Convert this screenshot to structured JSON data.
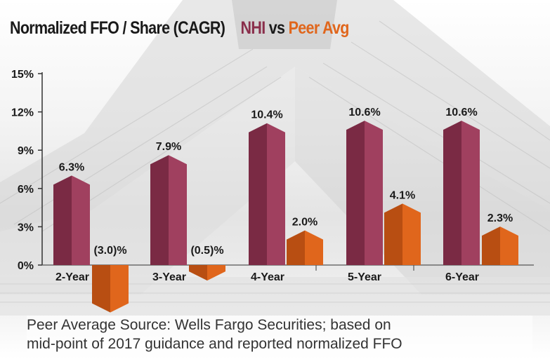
{
  "title": {
    "main": "Normalized FFO / Share (CAGR)",
    "nhi": "NHI",
    "vs": "vs",
    "peer": "Peer Avg"
  },
  "colors": {
    "nhi_front": "#a0405f",
    "nhi_side": "#7a2a44",
    "peer_front": "#e0661c",
    "peer_side": "#b84e12",
    "title_nhi": "#8a2e4b",
    "title_peer": "#e0661c"
  },
  "chart_data": {
    "type": "bar",
    "categories": [
      "2-Year",
      "3-Year",
      "4-Year",
      "5-Year",
      "6-Year"
    ],
    "series": [
      {
        "name": "NHI",
        "values": [
          6.3,
          7.9,
          10.4,
          10.6,
          10.6
        ],
        "labels": [
          "6.3%",
          "7.9%",
          "10.4%",
          "10.6%",
          "10.6%"
        ]
      },
      {
        "name": "Peer Avg",
        "values": [
          -3.0,
          -0.5,
          2.0,
          4.1,
          2.3
        ],
        "labels": [
          "(3.0)%",
          "(0.5)%",
          "2.0%",
          "4.1%",
          "2.3%"
        ]
      }
    ],
    "yticks": [
      "0%",
      "3%",
      "6%",
      "9%",
      "12%",
      "15%"
    ],
    "ylim": [
      -3,
      15
    ]
  },
  "footnote": {
    "line1": "Peer Average Source: Wells Fargo Securities; based on",
    "line2": "mid-point of 2017 guidance and reported normalized FFO"
  }
}
